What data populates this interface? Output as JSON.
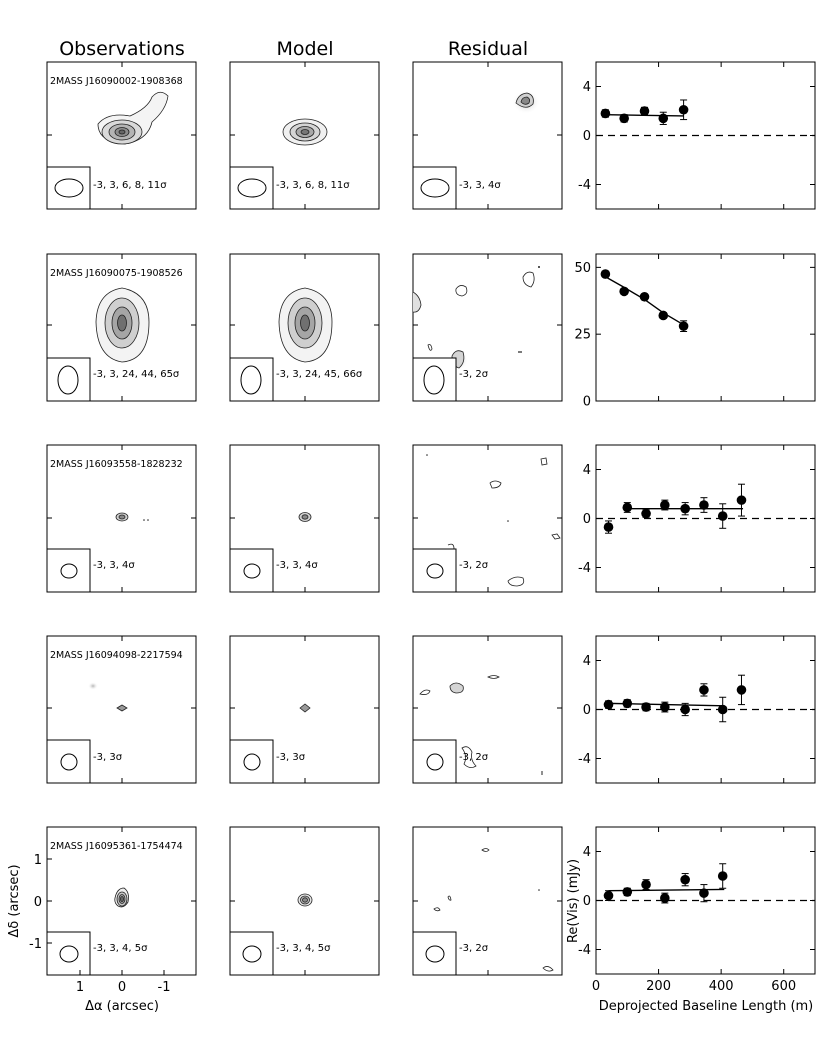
{
  "column_titles": [
    "Observations",
    "Model",
    "Residual"
  ],
  "image_axes": {
    "xlabel": "Δα (arcsec)",
    "ylabel": "Δδ (arcsec)",
    "xticks": [
      "1",
      "0",
      "-1"
    ],
    "yticks": [
      "1",
      "0",
      "-1"
    ]
  },
  "vis_axes": {
    "xlabel": "Deprojected Baseline Length (m)",
    "ylabel": "Re(Vis) (mJy)",
    "xticks": [
      "0",
      "200",
      "400",
      "600"
    ],
    "xlim": [
      0,
      700
    ]
  },
  "rows": [
    {
      "source": "2MASS J16090002-1908368",
      "obs_contours": "-3, 3, 6, 8, 11σ",
      "model_contours": "-3, 3, 6, 8, 11σ",
      "resid_contours": "-3, 3, 4σ"
    },
    {
      "source": "2MASS J16090075-1908526",
      "obs_contours": "-3, 3, 24, 44, 65σ",
      "model_contours": "-3, 3, 24, 45, 66σ",
      "resid_contours": "-3, 2σ"
    },
    {
      "source": "2MASS J16093558-1828232",
      "obs_contours": "-3, 3, 4σ",
      "model_contours": "-3, 3, 4σ",
      "resid_contours": "-3, 2σ"
    },
    {
      "source": "2MASS J16094098-2217594",
      "obs_contours": "-3, 3σ",
      "model_contours": "-3, 3σ",
      "resid_contours": "-3, 2σ"
    },
    {
      "source": "2MASS J16095361-1754474",
      "obs_contours": "-3, 3, 4, 5σ",
      "model_contours": "-3, 3, 4, 5σ",
      "resid_contours": "-3, 2σ"
    }
  ],
  "chart_data": [
    {
      "type": "scatter",
      "yticks": [
        "4",
        "0",
        "-4"
      ],
      "ylim": [
        -6,
        6
      ],
      "x": [
        30,
        90,
        155,
        215,
        280
      ],
      "y": [
        1.8,
        1.4,
        2.0,
        1.4,
        2.1
      ],
      "err": [
        0.3,
        0.3,
        0.3,
        0.5,
        0.8
      ],
      "model": [
        [
          30,
          1.7
        ],
        [
          280,
          1.6
        ]
      ]
    },
    {
      "type": "scatter",
      "yticks": [
        "50",
        "25",
        "0"
      ],
      "ylim": [
        0,
        55
      ],
      "x": [
        30,
        90,
        155,
        215,
        280
      ],
      "y": [
        47.5,
        41.0,
        39.0,
        32.0,
        28.0
      ],
      "err": [
        1.0,
        1.0,
        1.0,
        1.0,
        2.0
      ],
      "model": [
        [
          30,
          46.5
        ],
        [
          90,
          42.5
        ],
        [
          155,
          38.0
        ],
        [
          215,
          33.0
        ],
        [
          280,
          28.5
        ]
      ]
    },
    {
      "type": "scatter",
      "yticks": [
        "4",
        "0",
        "-4"
      ],
      "ylim": [
        -6,
        6
      ],
      "x": [
        40,
        100,
        160,
        220,
        285,
        345,
        405,
        465
      ],
      "y": [
        -0.7,
        0.9,
        0.4,
        1.1,
        0.8,
        1.1,
        0.2,
        1.5
      ],
      "err": [
        0.5,
        0.4,
        0.3,
        0.4,
        0.5,
        0.6,
        1.0,
        1.3
      ],
      "model": [
        [
          100,
          0.8
        ],
        [
          470,
          0.8
        ]
      ]
    },
    {
      "type": "scatter",
      "yticks": [
        "4",
        "0",
        "-4"
      ],
      "ylim": [
        -6,
        6
      ],
      "x": [
        40,
        100,
        160,
        220,
        285,
        345,
        405,
        465
      ],
      "y": [
        0.4,
        0.5,
        0.2,
        0.2,
        0.0,
        1.6,
        0.0,
        1.6
      ],
      "err": [
        0.3,
        0.3,
        0.3,
        0.4,
        0.5,
        0.5,
        1.0,
        1.2
      ],
      "model": [
        [
          40,
          0.5
        ],
        [
          410,
          0.3
        ]
      ]
    },
    {
      "type": "scatter",
      "yticks": [
        "4",
        "0",
        "-4"
      ],
      "ylim": [
        -6,
        6
      ],
      "x": [
        40,
        100,
        160,
        220,
        285,
        345,
        405
      ],
      "y": [
        0.4,
        0.7,
        1.3,
        0.2,
        1.7,
        0.6,
        2.0
      ],
      "err": [
        0.4,
        0.3,
        0.4,
        0.4,
        0.5,
        0.7,
        1.0
      ],
      "model": [
        [
          40,
          0.8
        ],
        [
          410,
          0.9
        ]
      ]
    }
  ]
}
